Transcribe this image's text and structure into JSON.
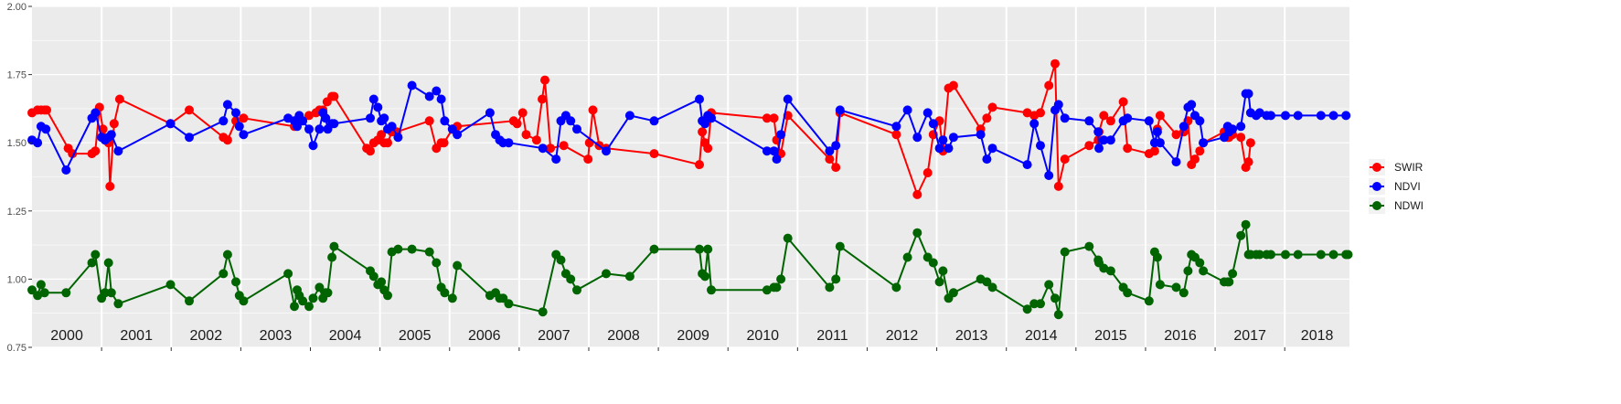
{
  "chart_data": {
    "type": "line",
    "title": "",
    "xlabel": "",
    "ylabel": "",
    "ylim": [
      0.75,
      2.0
    ],
    "xlim": [
      2000.0,
      2018.93
    ],
    "yticks": [
      0.75,
      1.0,
      1.25,
      1.5,
      1.75,
      2.0
    ],
    "ytick_labels": [
      "0.75",
      "1.00",
      "1.25",
      "1.50",
      "1.75",
      "2.00"
    ],
    "year_labels": [
      "2000",
      "2001",
      "2002",
      "2003",
      "2004",
      "2005",
      "2006",
      "2007",
      "2008",
      "2009",
      "2010",
      "2011",
      "2012",
      "2013",
      "2014",
      "2015",
      "2016",
      "2017",
      "2018"
    ],
    "grid": true,
    "legend_position": "right",
    "series": [
      {
        "name": "SWIR",
        "color": "#ff0000",
        "x": [
          2000.0,
          2000.08,
          2000.13,
          2000.18,
          2000.21,
          2000.52,
          2000.58,
          2000.86,
          2000.91,
          2000.97,
          2001.02,
          2001.1,
          2001.12,
          2001.18,
          2001.26,
          2001.99,
          2002.26,
          2002.75,
          2002.81,
          2002.93,
          2003.04,
          2003.77,
          2003.98,
          2004.08,
          2004.13,
          2004.18,
          2004.24,
          2004.31,
          2004.34,
          2004.81,
          2004.86,
          2004.91,
          2004.97,
          2005.02,
          2005.06,
          2005.11,
          2005.17,
          2005.24,
          2005.71,
          2005.81,
          2005.88,
          2005.92,
          2006.04,
          2006.11,
          2007.25,
          2006.92,
          2006.97,
          2007.05,
          2007.1,
          2007.33,
          2007.37,
          2007.45,
          2007.64,
          2008.01,
          2007.99,
          2008.06,
          2008.15,
          2008.25,
          2008.94,
          2009.59,
          2009.63,
          2009.67,
          2009.71,
          2009.76,
          2010.56,
          2010.66,
          2010.7,
          2010.76,
          2010.86,
          2011.46,
          2011.55,
          2011.61,
          2012.42,
          2012.72,
          2012.87,
          2012.95,
          2013.04,
          2013.09,
          2013.17,
          2013.24,
          2013.63,
          2013.72,
          2013.8,
          2014.3,
          2014.4,
          2014.49,
          2014.61,
          2014.7,
          2014.75,
          2014.84,
          2015.19,
          2015.32,
          2015.33,
          2015.4,
          2015.5,
          2015.68,
          2015.74,
          2016.05,
          2016.13,
          2016.17,
          2016.21,
          2016.44,
          2016.55,
          2016.61,
          2016.66,
          2016.71,
          2016.78,
          2016.83,
          2017.13,
          2017.18,
          2017.2,
          2017.25,
          2017.37,
          2017.44,
          2017.48,
          2017.51,
          2017.59,
          2017.64,
          2017.74,
          2017.8,
          2018.01,
          2018.19,
          2018.52,
          2018.7,
          2018.88,
          2018.91,
          2018.99
        ]
      },
      {
        "name": "NDVI",
        "color": "#0000ff",
        "x": [
          2000.0,
          2000.08,
          2000.13,
          2000.2,
          2000.49,
          2000.86,
          2000.91,
          2001.0,
          2001.05,
          2001.1,
          2001.14,
          2001.24,
          2001.99,
          2002.26,
          2002.75,
          2002.81,
          2002.93,
          2002.98,
          2003.04,
          2003.68,
          2003.77,
          2003.81,
          2003.84,
          2003.89,
          2003.98,
          2004.04,
          2004.13,
          2004.18,
          2004.22,
          2004.25,
          2004.31,
          2004.34,
          2004.86,
          2004.91,
          2004.97,
          2005.02,
          2005.06,
          2005.11,
          2005.17,
          2005.26,
          2005.46,
          2005.71,
          2005.81,
          2005.88,
          2005.93,
          2006.04,
          2006.11,
          2006.58,
          2006.66,
          2006.72,
          2006.77,
          2006.85,
          2007.34,
          2007.53,
          2007.6,
          2007.67,
          2007.74,
          2007.83,
          2008.25,
          2008.59,
          2008.94,
          2009.59,
          2009.63,
          2009.67,
          2009.71,
          2009.76,
          2010.56,
          2010.66,
          2010.7,
          2010.76,
          2010.86,
          2011.46,
          2011.55,
          2011.61,
          2012.42,
          2012.58,
          2012.72,
          2012.87,
          2012.95,
          2013.04,
          2013.09,
          2013.17,
          2013.24,
          2013.63,
          2013.72,
          2013.8,
          2014.3,
          2014.4,
          2014.49,
          2014.61,
          2014.7,
          2014.75,
          2014.84,
          2015.19,
          2015.32,
          2015.33,
          2015.4,
          2015.5,
          2015.68,
          2015.74,
          2016.05,
          2016.13,
          2016.17,
          2016.21,
          2016.44,
          2016.55,
          2016.61,
          2016.66,
          2016.71,
          2016.78,
          2016.83,
          2017.13,
          2017.18,
          2017.2,
          2017.25,
          2017.37,
          2017.44,
          2017.48,
          2017.51,
          2017.59,
          2017.64,
          2017.74,
          2017.8,
          2018.01,
          2018.19,
          2018.52,
          2018.7,
          2018.88,
          2018.91,
          2018.99
        ]
      },
      {
        "name": "NDWI",
        "color": "#006400",
        "x": [
          2000.0,
          2000.08,
          2000.13,
          2000.18,
          2000.49,
          2000.86,
          2000.91,
          2001.0,
          2001.05,
          2001.1,
          2001.14,
          2001.24,
          2001.99,
          2002.26,
          2002.75,
          2002.81,
          2002.93,
          2002.98,
          2003.04,
          2003.68,
          2003.77,
          2003.81,
          2003.84,
          2003.89,
          2003.98,
          2004.04,
          2004.13,
          2004.18,
          2004.22,
          2004.25,
          2004.31,
          2004.34,
          2004.86,
          2004.91,
          2004.97,
          2005.02,
          2005.06,
          2005.11,
          2005.17,
          2005.26,
          2005.46,
          2005.71,
          2005.81,
          2005.88,
          2005.93,
          2006.04,
          2006.11,
          2006.58,
          2006.66,
          2006.72,
          2006.77,
          2006.85,
          2007.34,
          2007.53,
          2007.6,
          2007.67,
          2007.74,
          2007.83,
          2008.25,
          2008.59,
          2008.94,
          2009.59,
          2009.63,
          2009.67,
          2009.71,
          2009.76,
          2010.56,
          2010.66,
          2010.7,
          2010.76,
          2010.86,
          2011.46,
          2011.55,
          2011.61,
          2012.42,
          2012.58,
          2012.72,
          2012.87,
          2012.95,
          2013.04,
          2013.09,
          2013.17,
          2013.24,
          2013.63,
          2013.72,
          2013.8,
          2014.3,
          2014.4,
          2014.49,
          2014.61,
          2014.7,
          2014.75,
          2014.84,
          2015.19,
          2015.32,
          2015.33,
          2015.4,
          2015.5,
          2015.68,
          2015.74,
          2016.05,
          2016.13,
          2016.17,
          2016.21,
          2016.44,
          2016.55,
          2016.61,
          2016.66,
          2016.71,
          2016.78,
          2016.83,
          2017.13,
          2017.18,
          2017.2,
          2017.25,
          2017.37,
          2017.44,
          2017.48,
          2017.51,
          2017.59,
          2017.64,
          2017.74,
          2017.8,
          2018.01,
          2018.19,
          2018.52,
          2018.7,
          2018.88,
          2018.91,
          2018.99
        ]
      }
    ]
  }
}
